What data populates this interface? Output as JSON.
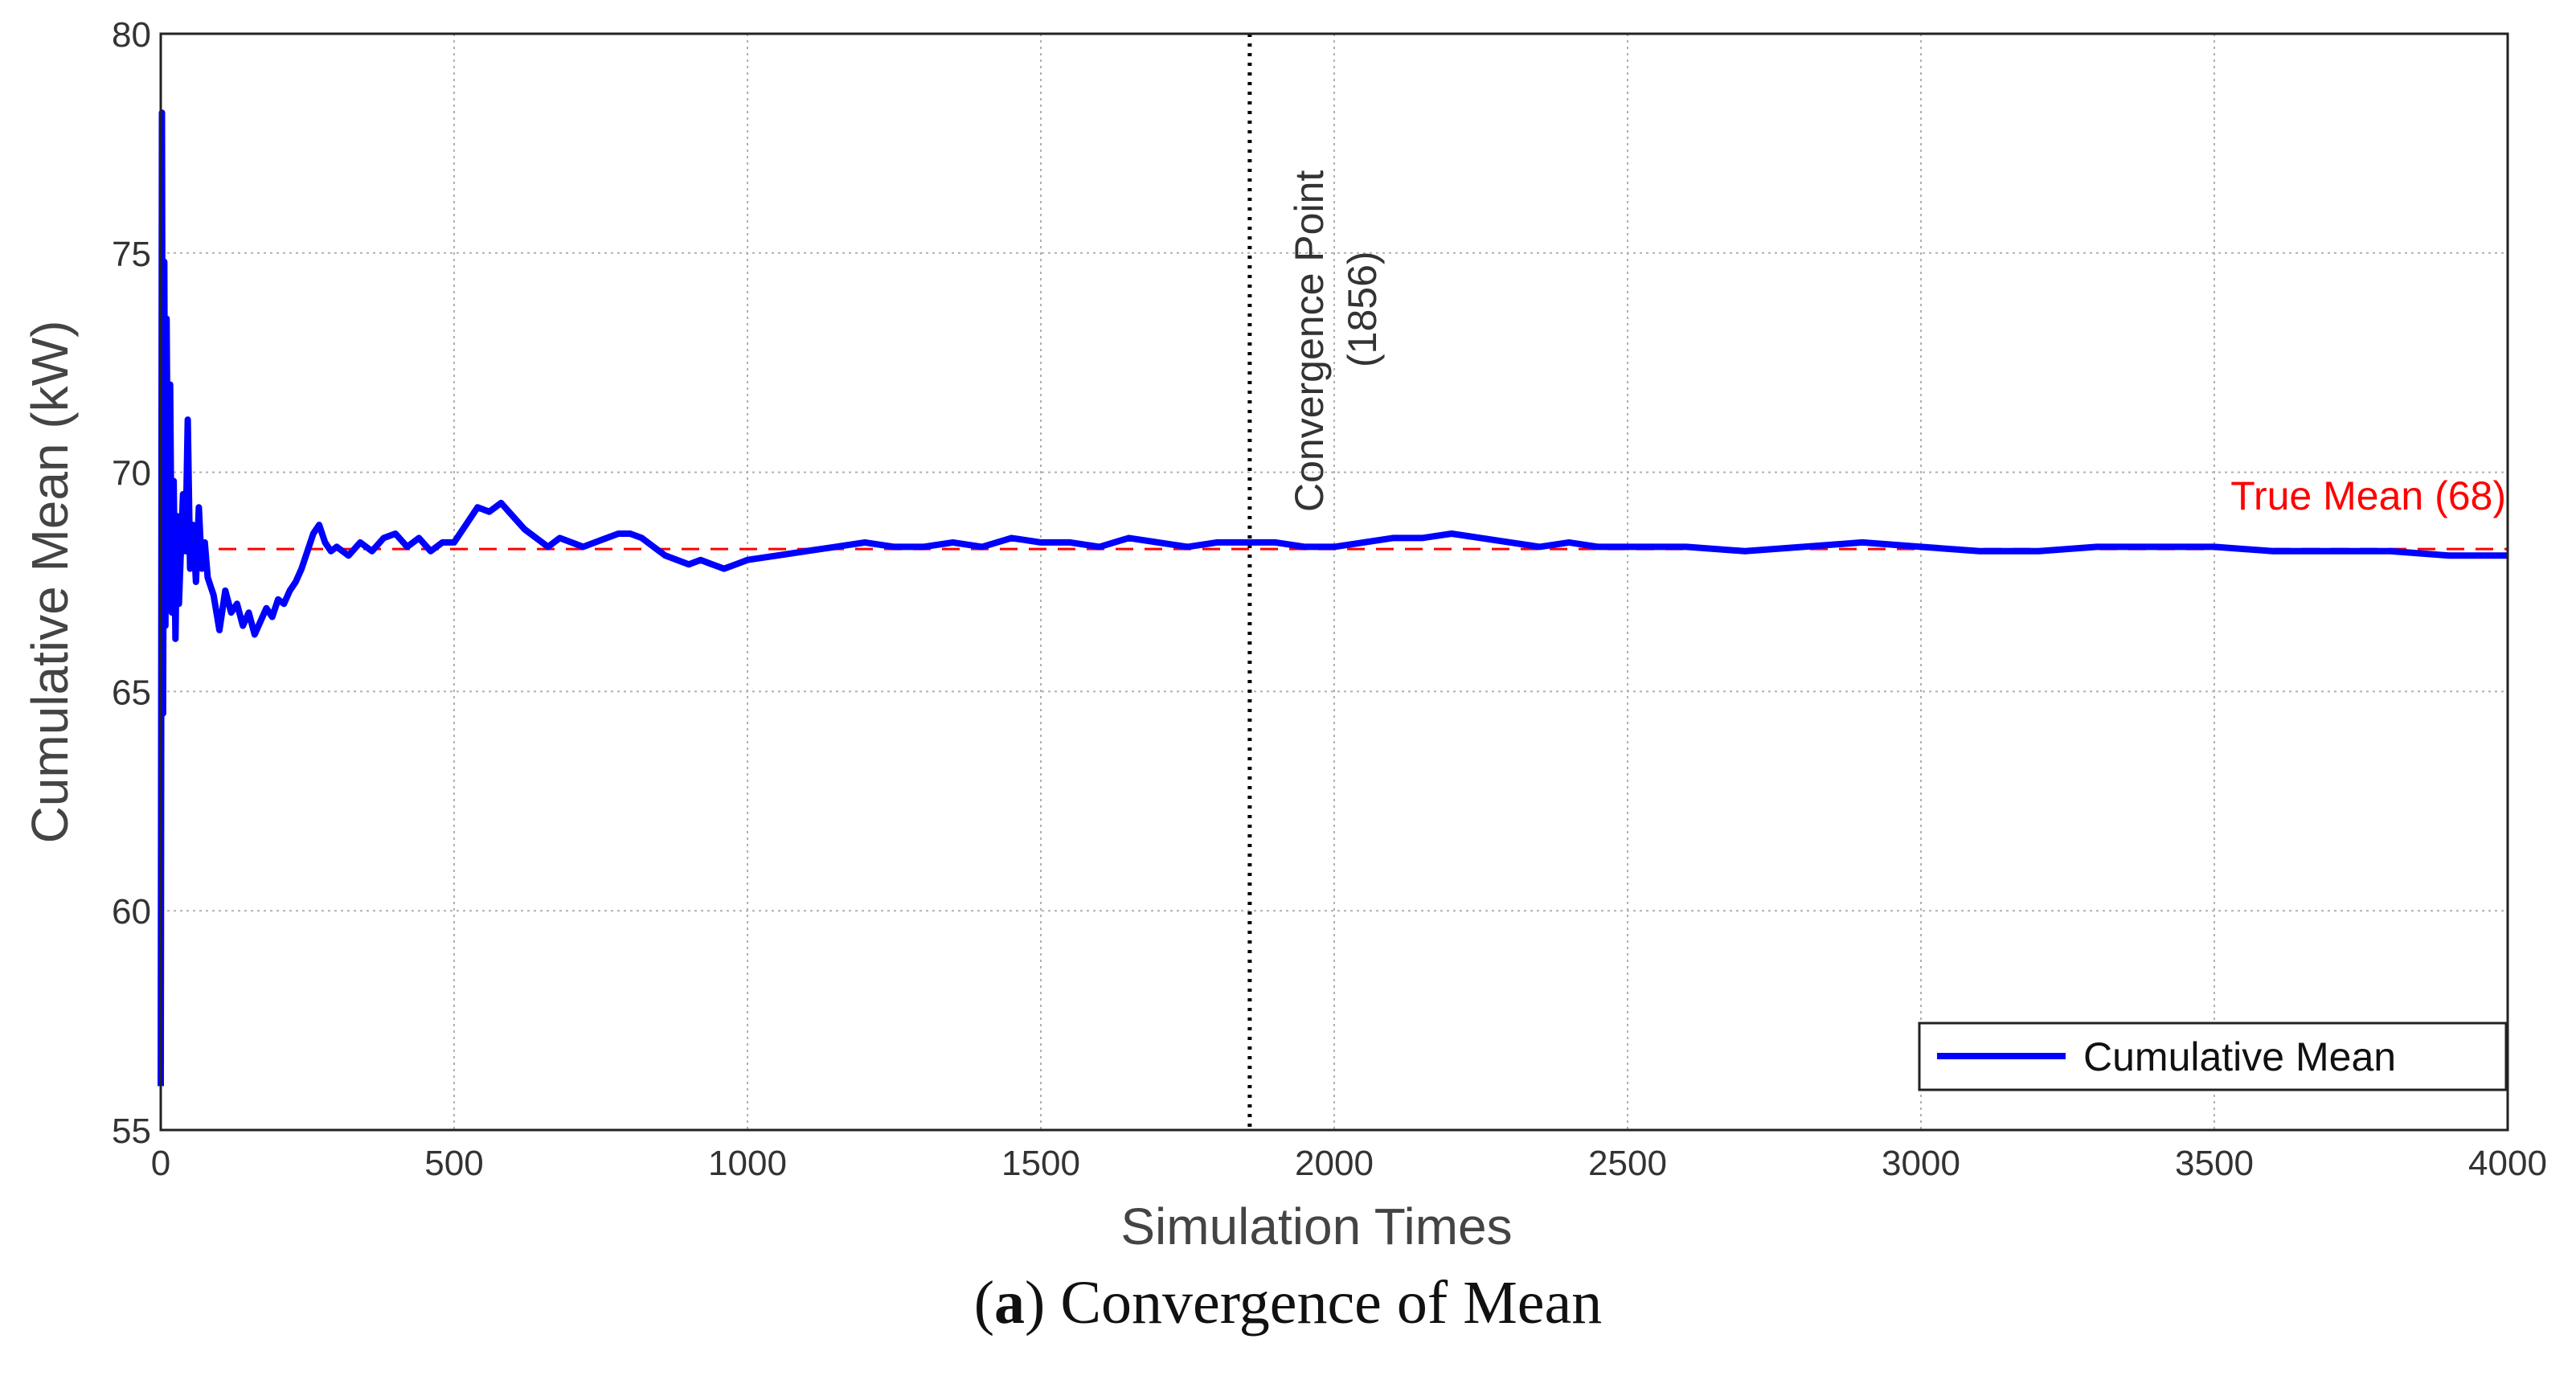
{
  "chart_data": {
    "type": "line",
    "xlabel": "Simulation Times",
    "ylabel": "Cumulative Mean (kW)",
    "xlim": [
      0,
      4000
    ],
    "ylim": [
      55,
      80
    ],
    "xticks": [
      "0",
      "500",
      "1000",
      "1500",
      "2000",
      "2500",
      "3000",
      "3500",
      "4000"
    ],
    "yticks": [
      "55",
      "60",
      "65",
      "70",
      "75",
      "80"
    ],
    "grid": true,
    "legend": {
      "position": "bottom-right",
      "entries": [
        "Cumulative Mean"
      ]
    },
    "series": [
      {
        "name": "Cumulative Mean",
        "color": "#0000FF",
        "x": [
          0,
          2,
          4,
          6,
          8,
          10,
          13,
          16,
          19,
          22,
          25,
          28,
          31,
          35,
          38,
          42,
          46,
          50,
          55,
          60,
          65,
          70,
          75,
          80,
          90,
          100,
          110,
          120,
          130,
          140,
          150,
          160,
          170,
          180,
          190,
          200,
          210,
          220,
          230,
          240,
          250,
          260,
          270,
          280,
          290,
          300,
          320,
          340,
          360,
          380,
          400,
          420,
          440,
          460,
          480,
          500,
          520,
          540,
          560,
          580,
          600,
          620,
          640,
          660,
          680,
          700,
          720,
          740,
          760,
          780,
          800,
          820,
          840,
          860,
          880,
          900,
          920,
          940,
          960,
          980,
          1000,
          1050,
          1100,
          1150,
          1200,
          1250,
          1300,
          1350,
          1400,
          1450,
          1500,
          1550,
          1600,
          1650,
          1700,
          1750,
          1800,
          1850,
          1900,
          1950,
          2000,
          2050,
          2100,
          2150,
          2200,
          2250,
          2300,
          2350,
          2400,
          2450,
          2500,
          2600,
          2700,
          2800,
          2900,
          3000,
          3100,
          3200,
          3300,
          3400,
          3500,
          3600,
          3700,
          3800,
          3900,
          4000
        ],
        "y": [
          56.0,
          78.2,
          64.5,
          74.8,
          66.5,
          73.5,
          67.5,
          72.0,
          66.8,
          69.8,
          66.2,
          69.0,
          67.0,
          68.5,
          69.5,
          68.2,
          71.2,
          67.8,
          68.8,
          67.5,
          69.2,
          67.8,
          68.4,
          67.6,
          67.2,
          66.4,
          67.3,
          66.8,
          67.0,
          66.5,
          66.8,
          66.3,
          66.6,
          66.9,
          66.7,
          67.1,
          67.0,
          67.3,
          67.5,
          67.8,
          68.2,
          68.6,
          68.8,
          68.4,
          68.2,
          68.3,
          68.1,
          68.4,
          68.2,
          68.5,
          68.6,
          68.3,
          68.5,
          68.2,
          68.4,
          68.4,
          68.8,
          69.2,
          69.1,
          69.3,
          69.0,
          68.7,
          68.5,
          68.3,
          68.5,
          68.4,
          68.3,
          68.4,
          68.5,
          68.6,
          68.6,
          68.5,
          68.3,
          68.1,
          68.0,
          67.9,
          68.0,
          67.9,
          67.8,
          67.9,
          68.0,
          68.1,
          68.2,
          68.3,
          68.4,
          68.3,
          68.3,
          68.4,
          68.3,
          68.5,
          68.4,
          68.4,
          68.3,
          68.5,
          68.4,
          68.3,
          68.4,
          68.4,
          68.4,
          68.3,
          68.3,
          68.4,
          68.5,
          68.5,
          68.6,
          68.5,
          68.4,
          68.3,
          68.4,
          68.3,
          68.3,
          68.3,
          68.2,
          68.3,
          68.4,
          68.3,
          68.2,
          68.2,
          68.3,
          68.3,
          68.3,
          68.2,
          68.2,
          68.2,
          68.1,
          68.1
        ]
      }
    ],
    "reference_lines": [
      {
        "orientation": "horizontal",
        "value": 68.25,
        "color": "#FF0000",
        "style": "dashed",
        "label": "True Mean (68)"
      },
      {
        "orientation": "vertical",
        "value": 1856,
        "color": "#000000",
        "style": "dotted",
        "label_line1": "Convergence Point",
        "label_line2": "(1856)"
      }
    ]
  },
  "caption": {
    "label": "a",
    "text": "Convergence of Mean"
  }
}
